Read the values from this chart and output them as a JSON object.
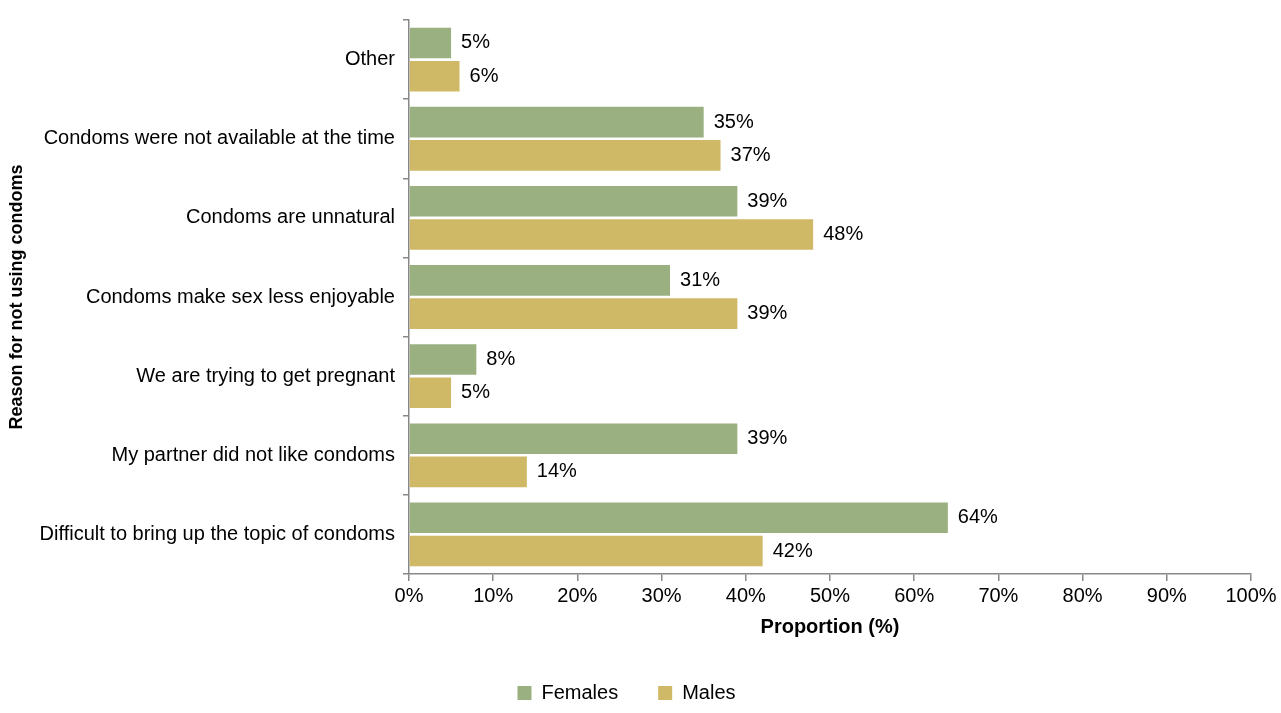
{
  "chart_data": {
    "type": "bar",
    "orientation": "horizontal",
    "xlabel": "Proportion (%)",
    "ylabel": "Reason for not using condoms",
    "categories": [
      "Other",
      "Condoms were not available at the time",
      "Condoms are unnatural",
      "Condoms make sex less enjoyable",
      "We are trying to get pregnant",
      "My partner did not like condoms",
      "Difficult to bring up the topic of condoms"
    ],
    "series": [
      {
        "name": "Females",
        "color": "#9bb080",
        "values": [
          5,
          35,
          39,
          31,
          8,
          39,
          64
        ],
        "value_labels": [
          "5%",
          "35%",
          "39%",
          "31%",
          "8%",
          "39%",
          "64%"
        ]
      },
      {
        "name": "Males",
        "color": "#cfb966",
        "values": [
          6,
          37,
          48,
          39,
          5,
          14,
          42
        ],
        "value_labels": [
          "6%",
          "37%",
          "48%",
          "39%",
          "5%",
          "14%",
          "42%"
        ]
      }
    ],
    "xlim": [
      0,
      100
    ],
    "xticks": [
      {
        "value": 0,
        "label": "0%"
      },
      {
        "value": 10,
        "label": "10%"
      },
      {
        "value": 20,
        "label": "20%"
      },
      {
        "value": 30,
        "label": "30%"
      },
      {
        "value": 40,
        "label": "40%"
      },
      {
        "value": 50,
        "label": "50%"
      },
      {
        "value": 60,
        "label": "60%"
      },
      {
        "value": 70,
        "label": "70%"
      },
      {
        "value": 80,
        "label": "80%"
      },
      {
        "value": 90,
        "label": "90%"
      },
      {
        "value": 100,
        "label": "100%"
      }
    ],
    "grid": false,
    "legend": "bottom"
  }
}
